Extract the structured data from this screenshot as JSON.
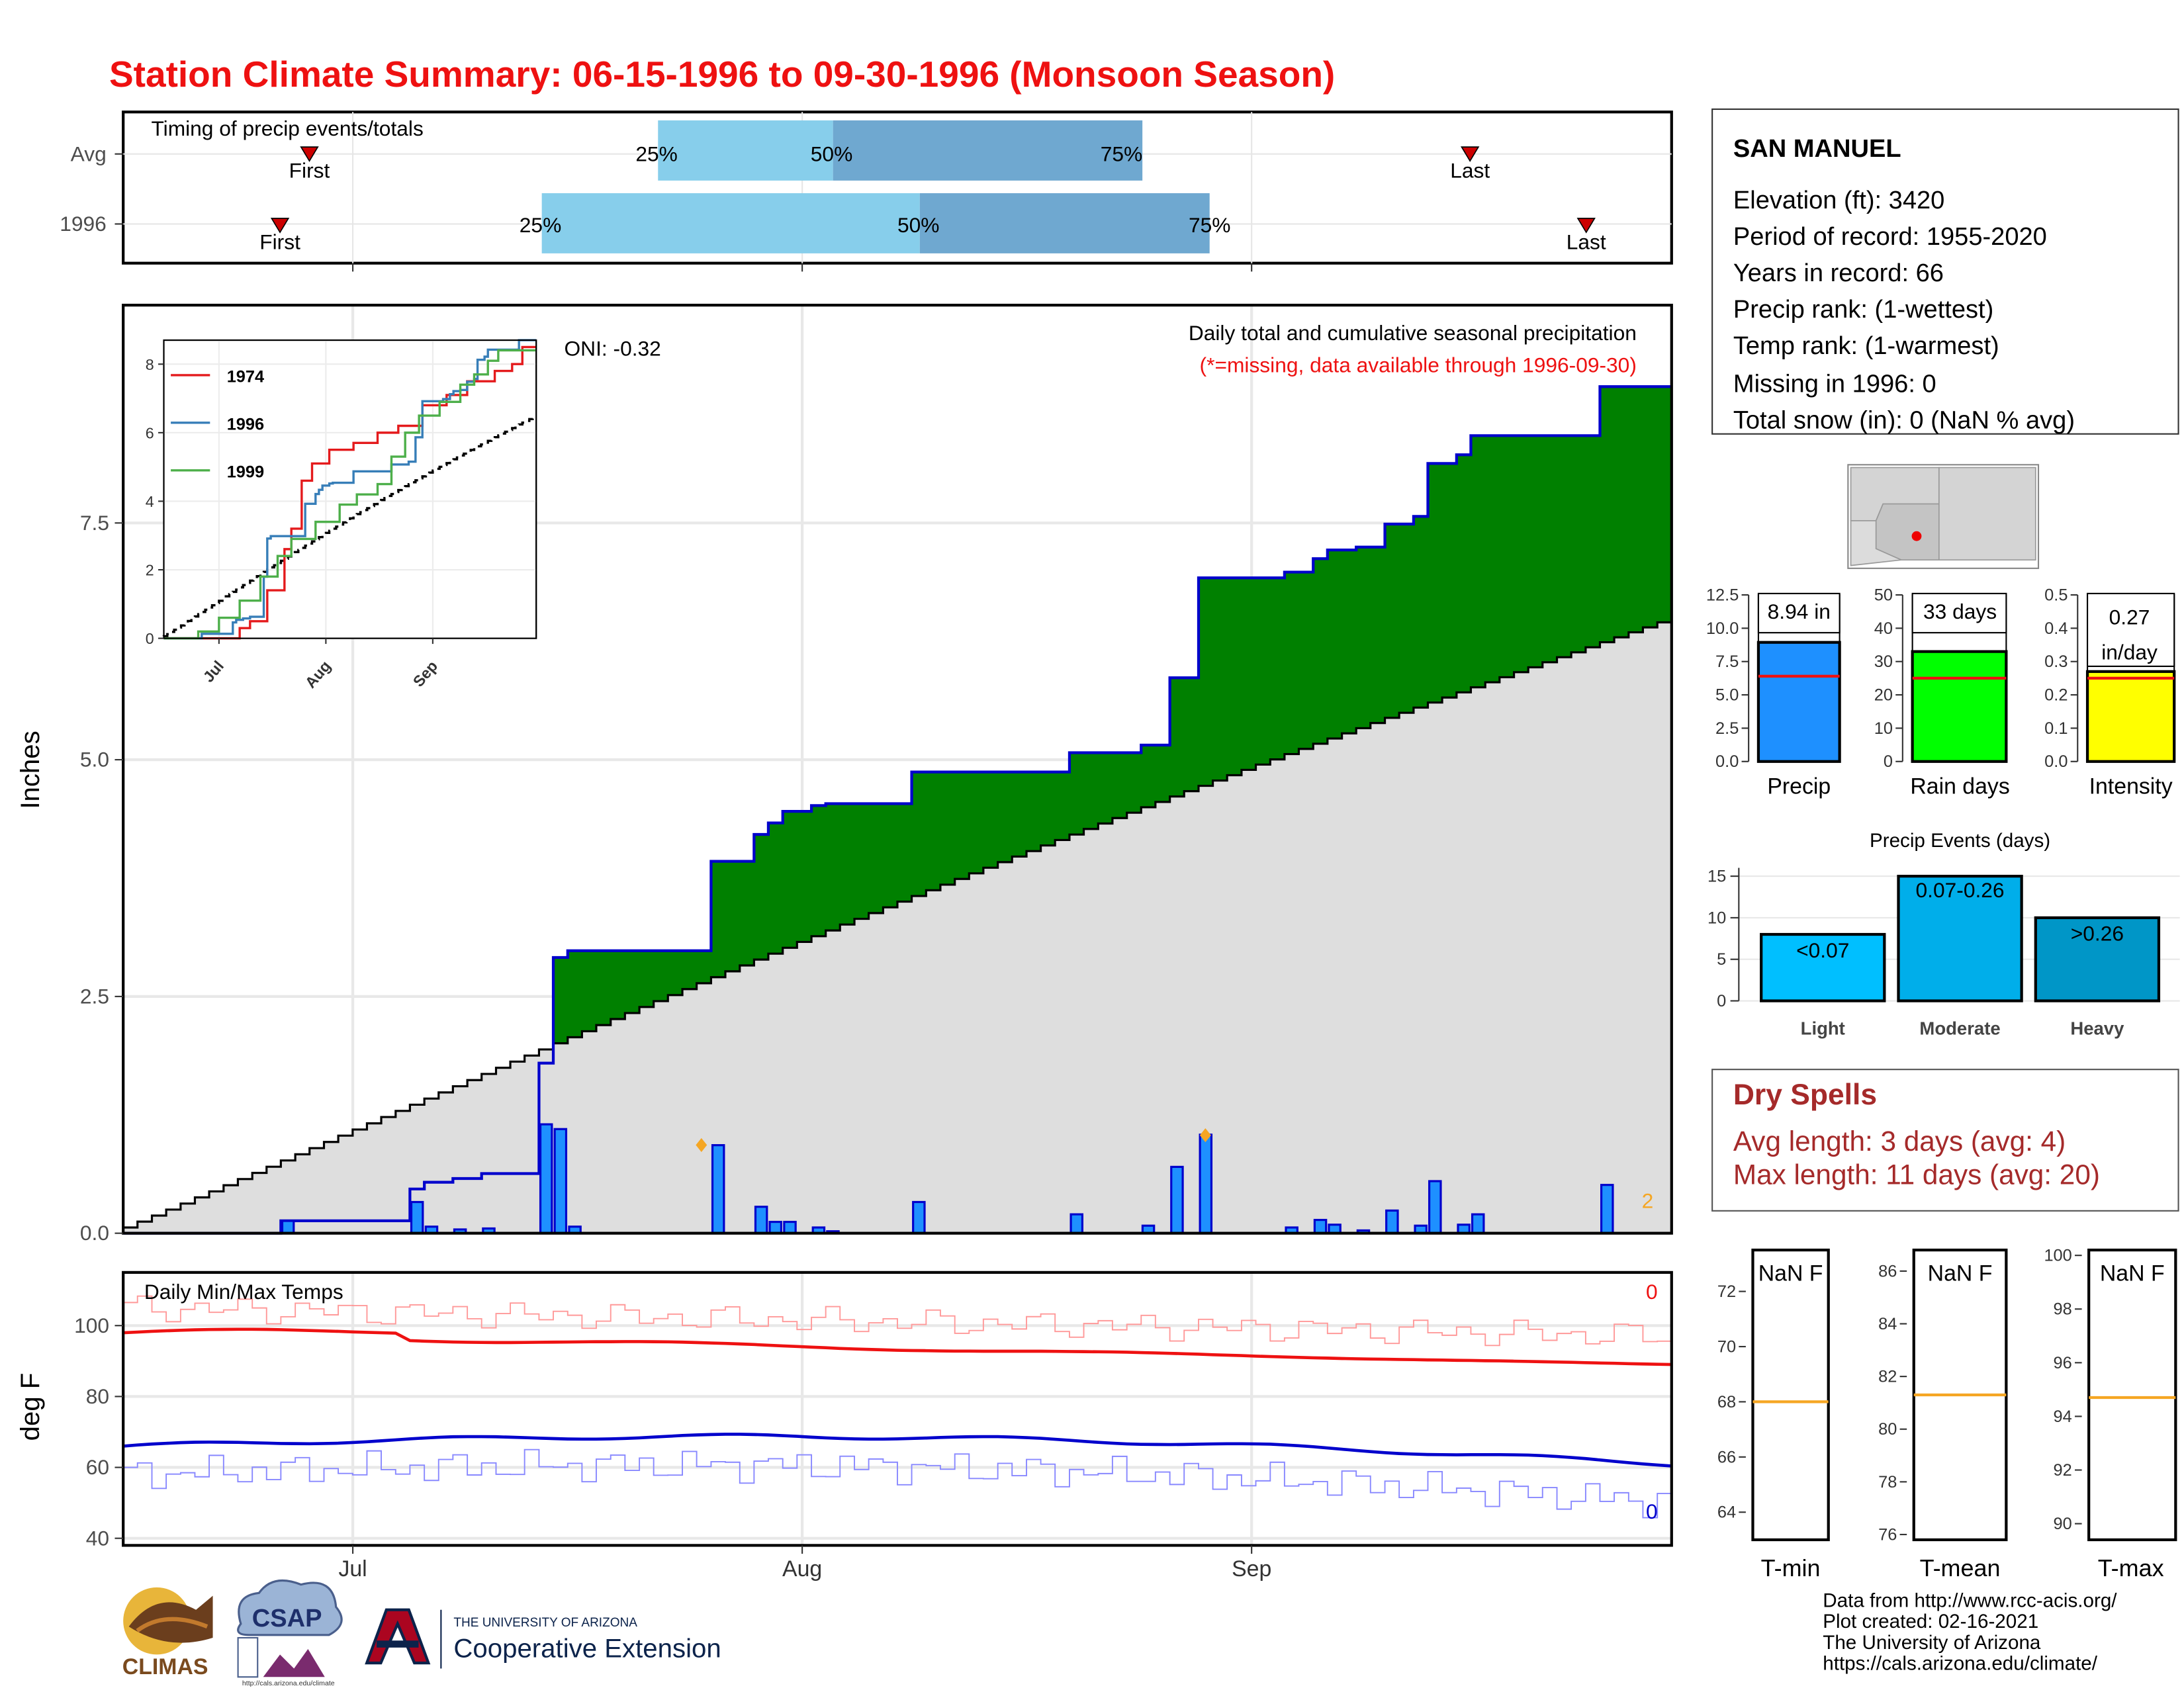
{
  "title": "Station Climate Summary: 06-15-1996 to 09-30-1996 (Monsoon Season)",
  "colors": {
    "title": "#ee1111",
    "green": "#008000",
    "brown": "#7a4b12",
    "avg_fill": "#dedede",
    "bar": "#1e90ff",
    "bar_stroke": "#0000cc"
  },
  "timing": {
    "label": "Timing of precip events/totals",
    "rows": [
      {
        "name": "Avg",
        "first": "First",
        "last": "Last",
        "q25": "25%",
        "q50": "50%",
        "q75": "75%"
      },
      {
        "name": "1996",
        "first": "First",
        "last": "Last",
        "q25": "25%",
        "q50": "50%",
        "q75": "75%"
      }
    ]
  },
  "station": {
    "name": "SAN MANUEL",
    "lines": [
      "Elevation (ft): 3420",
      "Period of record: 1955-2020",
      "Years in record: 66",
      "Precip rank:  (1-wettest)",
      "Temp rank:  (1-warmest)",
      "Missing in 1996: 0",
      "Total snow (in): 0 (NaN % avg)"
    ]
  },
  "main": {
    "annotation1": "Daily total and cumulative seasonal precipitation",
    "annotation2": "(*=missing, data available through 1996-09-30)",
    "oni": "ONI: -0.32",
    "ylabel": "Inches",
    "corner": "2"
  },
  "temps": {
    "label": "Daily Min/Max Temps",
    "ylabel": "deg F",
    "max_count": "0",
    "min_count": "0"
  },
  "xaxis": [
    "Jul",
    "Aug",
    "Sep"
  ],
  "summary_bars": {
    "precip": {
      "label": "Precip",
      "value_text": "8.94 in",
      "ticks": [
        "12.5",
        "10.0",
        "7.5",
        "5.0",
        "2.5",
        "0.0"
      ]
    },
    "raindays": {
      "label": "Rain days",
      "value_text": "33 days",
      "ticks": [
        "50",
        "40",
        "30",
        "20",
        "10",
        "0"
      ]
    },
    "intensity": {
      "label": "Intensity",
      "value_text1": "0.27",
      "value_text2": "in/day",
      "ticks": [
        "0.5",
        "0.4",
        "0.3",
        "0.2",
        "0.1",
        "0.0"
      ]
    }
  },
  "events": {
    "title": "Precip Events (days)",
    "ticks": [
      "15",
      "10",
      "5",
      "0"
    ],
    "bars": [
      {
        "label": "Light",
        "text": "<0.07"
      },
      {
        "label": "Moderate",
        "text": "0.07-0.26"
      },
      {
        "label": "Heavy",
        "text": ">0.26"
      }
    ]
  },
  "dry": {
    "title": "Dry Spells",
    "line1": "Avg length: 3 days (avg: 4)",
    "line2": "Max length: 11 days (avg: 20)"
  },
  "tboxes": [
    {
      "label": "T-min",
      "value": "NaN F",
      "ticks": [
        "72",
        "70",
        "68",
        "66",
        "64"
      ]
    },
    {
      "label": "T-mean",
      "value": "NaN F",
      "ticks": [
        "86",
        "84",
        "82",
        "80",
        "78",
        "76"
      ]
    },
    {
      "label": "T-max",
      "value": "NaN F",
      "ticks": [
        "100",
        "98",
        "96",
        "94",
        "92",
        "90"
      ]
    }
  ],
  "footer": [
    "Data from http://www.rcc-acis.org/",
    "Plot created: 02-16-2021",
    "The University of Arizona",
    "https://cals.arizona.edu/climate/"
  ],
  "logos": {
    "climas": "CLIMAS",
    "csap": "CSAP",
    "csap_url": "http://cals.arizona.edu/climate",
    "ua_small": "THE UNIVERSITY OF ARIZONA",
    "ua_big": "Cooperative Extension"
  },
  "chart_data": [
    {
      "type": "area",
      "title": "Daily total and cumulative seasonal precipitation",
      "ylabel": "Inches",
      "ylim": [
        0,
        9.8
      ],
      "yticks": [
        0.0,
        2.5,
        5.0,
        7.5
      ],
      "x_month_ticks": [
        "Jul",
        "Aug",
        "Sep"
      ],
      "daily_precip_1996": [
        {
          "date": "06-26",
          "value": 0.13
        },
        {
          "date": "07-05",
          "value": 0.33
        },
        {
          "date": "07-06",
          "value": 0.07
        },
        {
          "date": "07-08",
          "value": 0.04
        },
        {
          "date": "07-10",
          "value": 0.05
        },
        {
          "date": "07-14",
          "value": 1.15
        },
        {
          "date": "07-15",
          "value": 1.1
        },
        {
          "date": "07-16",
          "value": 0.07
        },
        {
          "date": "07-26",
          "value": 0.93
        },
        {
          "date": "07-29",
          "value": 0.28
        },
        {
          "date": "07-30",
          "value": 0.12
        },
        {
          "date": "07-31",
          "value": 0.12
        },
        {
          "date": "08-02",
          "value": 0.06
        },
        {
          "date": "08-03",
          "value": 0.02
        },
        {
          "date": "08-09",
          "value": 0.33
        },
        {
          "date": "08-20",
          "value": 0.2
        },
        {
          "date": "08-25",
          "value": 0.08
        },
        {
          "date": "08-27",
          "value": 0.7
        },
        {
          "date": "08-29",
          "value": 1.04
        },
        {
          "date": "09-04",
          "value": 0.06
        },
        {
          "date": "09-06",
          "value": 0.14
        },
        {
          "date": "09-07",
          "value": 0.09
        },
        {
          "date": "09-09",
          "value": 0.03
        },
        {
          "date": "09-11",
          "value": 0.24
        },
        {
          "date": "09-13",
          "value": 0.08
        },
        {
          "date": "09-14",
          "value": 0.55
        },
        {
          "date": "09-16",
          "value": 0.09
        },
        {
          "date": "09-17",
          "value": 0.2
        },
        {
          "date": "09-26",
          "value": 0.51
        }
      ],
      "cumulative_1996_total": 8.94,
      "cumulative_avg_end": 6.45
    },
    {
      "type": "line",
      "title": "",
      "series": [
        {
          "name": "1974"
        },
        {
          "name": "1996"
        },
        {
          "name": "1999"
        }
      ],
      "ylim": [
        0,
        8.7
      ],
      "yticks": [
        0,
        2,
        4,
        6,
        8
      ],
      "x_ticks": [
        "Jul",
        "Aug",
        "Sep"
      ]
    },
    {
      "type": "line",
      "title": "Daily Min/Max Temps",
      "ylabel": "deg F",
      "yticks": [
        40,
        60,
        80,
        100
      ],
      "ylim": [
        38,
        115
      ],
      "avg_max_start": 98,
      "avg_max_end": 89,
      "avg_min_start": 66,
      "avg_min_end": 61
    },
    {
      "type": "bar",
      "categories": [
        "Precip",
        "Rain days",
        "Intensity"
      ],
      "values": [
        8.94,
        33,
        0.27
      ],
      "averages": [
        6.4,
        25,
        0.25
      ],
      "ylims": [
        [
          0,
          12.5
        ],
        [
          0,
          50
        ],
        [
          0,
          0.5
        ]
      ]
    },
    {
      "type": "bar",
      "title": "Precip Events (days)",
      "categories": [
        "Light",
        "Moderate",
        "Heavy"
      ],
      "values": [
        8,
        15,
        10
      ],
      "ylim": [
        0,
        16
      ]
    }
  ]
}
